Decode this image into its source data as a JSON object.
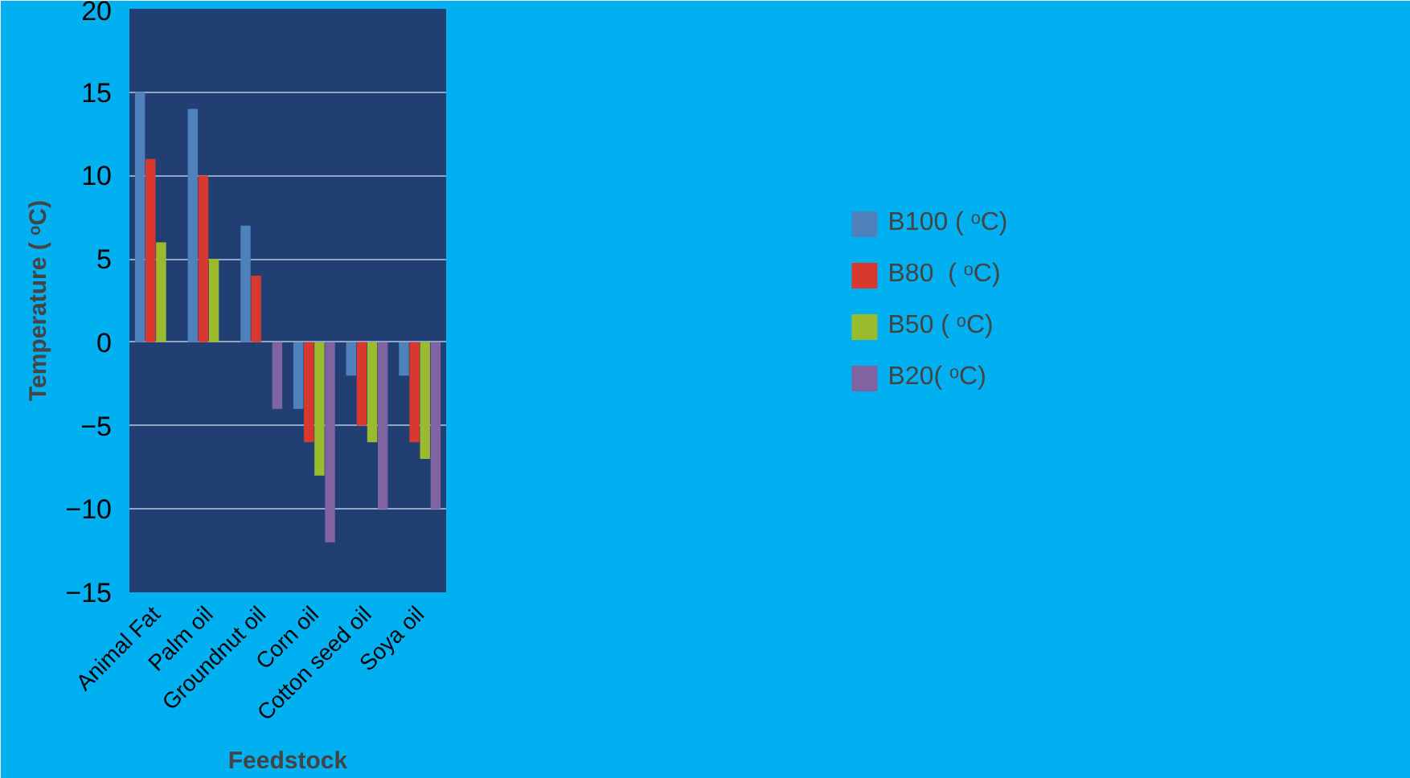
{
  "chart_data": {
    "type": "bar",
    "xlabel": "Feedstock",
    "ylabel": "Temperature ( ᵒC)",
    "categories": [
      "Animal Fat",
      "Palm oil",
      "Groundnut oil",
      "Corn oil",
      "Cotton seed oil",
      "Soya oil"
    ],
    "series": [
      {
        "name": "B100 ( ᵒC)",
        "color": "#4f81bd",
        "values": [
          15,
          14,
          7,
          -4,
          -2,
          -2
        ]
      },
      {
        "name": "B80  ( ᵒC)",
        "color": "#d9382e",
        "values": [
          11,
          10,
          4,
          -6,
          -5,
          -6
        ]
      },
      {
        "name": "B50 ( ᵒC)",
        "color": "#9bbb2f",
        "values": [
          6,
          5,
          null,
          -8,
          -6,
          -7
        ]
      },
      {
        "name": "B20( ᵒC)",
        "color": "#8064a2",
        "values": [
          null,
          null,
          -4,
          -12,
          -10,
          -10
        ]
      }
    ],
    "ylim": [
      -15,
      20
    ],
    "yticks": [
      -15,
      -10,
      -5,
      0,
      5,
      10,
      15,
      20
    ],
    "grid": "y",
    "legend": "right"
  }
}
